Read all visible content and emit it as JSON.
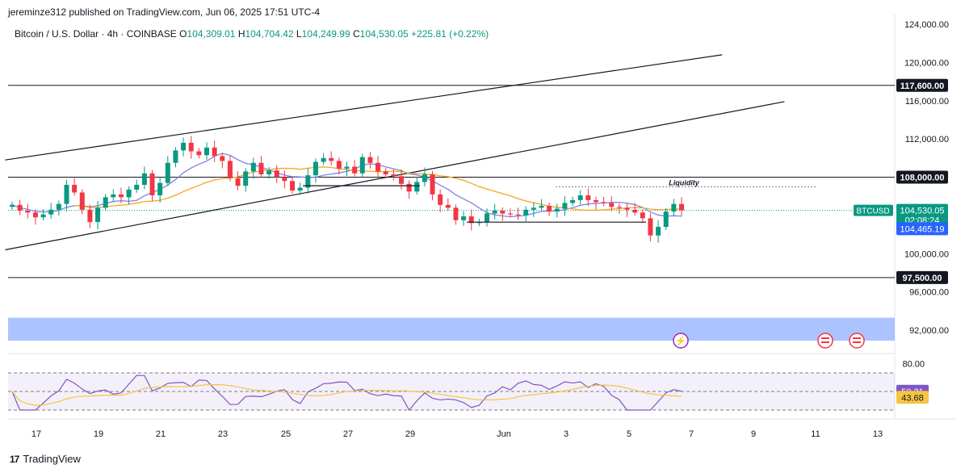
{
  "header": {
    "published_line": "jereminze312 published on TradingView.com, Jun 06, 2025 17:51 UTC-4",
    "symbol_line": "Bitcoin / U.S. Dollar · 4h · COINBASE",
    "ohlc": {
      "o_label": "O",
      "o": "104,309.01",
      "h_label": "H",
      "h": "104,704.42",
      "l_label": "L",
      "l": "104,249.99",
      "c_label": "C",
      "c": "104,530.05",
      "change": "+225.81 (+0.22%)"
    }
  },
  "footer": {
    "brand": "TradingView",
    "logo_text": "17"
  },
  "colors": {
    "up": "#089981",
    "down": "#f23645",
    "ma_fast": "#7e84e8",
    "ma_slow": "#f5a623",
    "rsi": "#7e57c2",
    "rsi_ma": "#f5c542",
    "band": "#9db8ff"
  },
  "chart_data": {
    "type": "candlestick",
    "symbol": "BTCUSD",
    "timeframe": "4h",
    "price_axis_ticks": [
      "124,000.00",
      "120,000.00",
      "116,000.00",
      "112,000.00",
      "100,000.00",
      "96,000.00",
      "92,000.00"
    ],
    "time_axis_ticks": [
      "17",
      "19",
      "21",
      "23",
      "25",
      "27",
      "29",
      "Jun",
      "3",
      "5",
      "7",
      "9",
      "11",
      "13"
    ],
    "ylim": [
      88000,
      125000
    ],
    "horizontal_levels": [
      {
        "label": "117,600.00",
        "value": 117600
      },
      {
        "label": "108,000.00",
        "value": 108000
      },
      {
        "label": "97,500.00",
        "value": 97500
      }
    ],
    "annotation": "Liquidity",
    "liquidity_level": 107000,
    "last_price": {
      "symbol_tag": "BTCUSD",
      "price": "104,530.05",
      "countdown": "02:08:24",
      "value": 104530
    },
    "ma_label": "104,465.19",
    "channel": [
      {
        "from": [
          "16 May",
          109800
        ],
        "to": [
          "8 Jun",
          120800
        ]
      },
      {
        "from": [
          "16 May",
          100400
        ],
        "to": [
          "10 Jun",
          115900
        ]
      }
    ],
    "candles_close": [
      105100,
      104500,
      104300,
      103800,
      104100,
      104600,
      105200,
      107200,
      106400,
      104600,
      103300,
      104800,
      105900,
      106200,
      105900,
      106700,
      107200,
      108400,
      106100,
      107400,
      109500,
      110800,
      111600,
      110700,
      110300,
      111100,
      110200,
      109700,
      107900,
      107100,
      108600,
      109500,
      108300,
      108700,
      108000,
      107600,
      106600,
      106900,
      108200,
      109600,
      110000,
      109700,
      108900,
      109100,
      108400,
      110100,
      109500,
      108600,
      108300,
      108100,
      107300,
      106500,
      107500,
      108300,
      106200,
      105100,
      104800,
      103500,
      103900,
      103200,
      103300,
      104200,
      104500,
      104200,
      104100,
      104000,
      104600,
      104800,
      105000,
      104400,
      104700,
      105300,
      105600,
      106100,
      105600,
      105400,
      105300,
      104900,
      104800,
      104600,
      104300,
      103700,
      101900,
      102800,
      104400,
      105200,
      104530
    ],
    "rsi": {
      "ticks": [
        "80.00"
      ],
      "rsi_label": "50.21",
      "rsi_ma_label": "43.68",
      "rsi_value": 50.21,
      "rsi_ma_value": 43.68,
      "levels": [
        70,
        50,
        30
      ]
    }
  }
}
